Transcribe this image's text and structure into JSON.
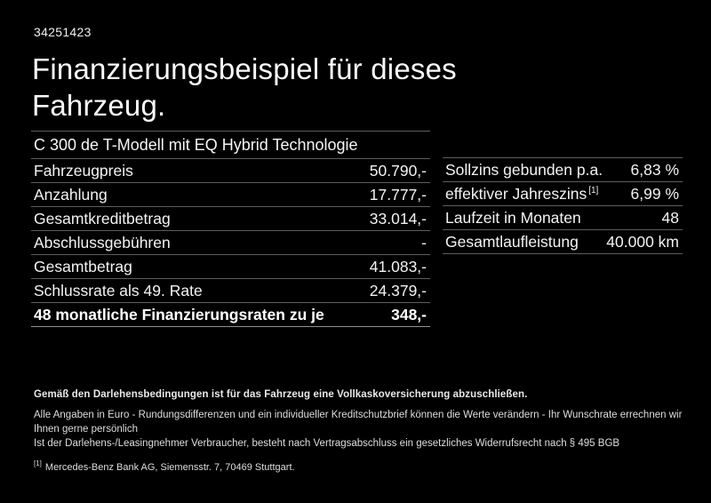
{
  "page": {
    "background_color": "#000000",
    "text_color": "#f5f5f5",
    "divider_color": "#5d5d5d"
  },
  "header": {
    "reference_number": "34251423",
    "title": "Finanzierungsbeispiel für dieses Fahrzeug."
  },
  "vehicle": {
    "model": "C 300 de T-Modell mit EQ Hybrid Technologie"
  },
  "financing_table": {
    "rows": [
      {
        "label": "Fahrzeugpreis",
        "value": "50.790,-"
      },
      {
        "label": "Anzahlung",
        "value": "17.777,-"
      },
      {
        "label": "Gesamtkreditbetrag",
        "value": "33.014,-"
      },
      {
        "label": "Abschlussgebühren",
        "value": "-"
      },
      {
        "label": "Gesamtbetrag",
        "value": "41.083,-"
      },
      {
        "label": "Schlussrate als 49. Rate",
        "value": "24.379,-"
      }
    ],
    "total_row": {
      "label": "48 monatliche Finanzierungsraten zu je",
      "value": "348,-"
    }
  },
  "conditions_table": {
    "rows": [
      {
        "label": "Sollzins gebunden p.a.",
        "sup": "",
        "value": "6,83 %"
      },
      {
        "label": "effektiver Jahreszins",
        "sup": "[1]",
        "value": "6,99 %"
      },
      {
        "label": "Laufzeit in Monaten",
        "sup": "",
        "value": "48"
      },
      {
        "label": "Gesamtlaufleistung",
        "sup": "",
        "value": "40.000 km"
      }
    ]
  },
  "footer": {
    "insurance_note": "Gemäß den Darlehensbedingungen ist für das Fahrzeug eine Vollkaskoversicherung abzuschließen.",
    "note_line1": "Alle Angaben in Euro - Rundungsdifferenzen und ein individueller Kreditschutzbrief können die Werte verändern - Ihr Wunschrate errechnen wir Ihnen gerne persönlich",
    "note_line2": "Ist der Darlehens-/Leasingnehmer Verbraucher, besteht nach Vertragsabschluss ein gesetzliches Widerrufsrecht nach § 495 BGB",
    "footnote_marker": "[1]",
    "footnote_text": "Mercedes-Benz Bank AG, Siemensstr. 7, 70469 Stuttgart."
  }
}
